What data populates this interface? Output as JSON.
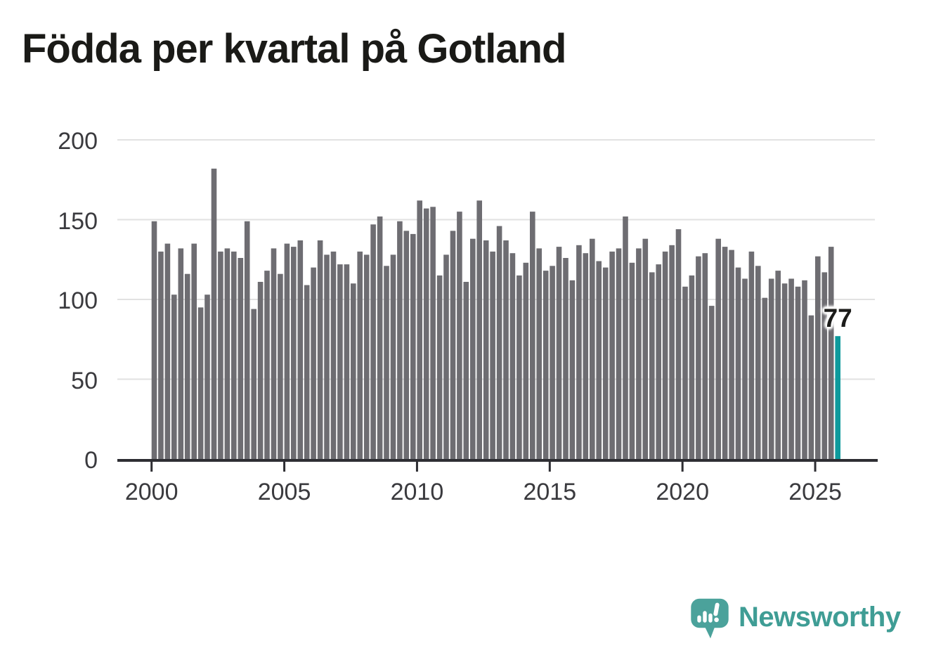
{
  "title": "Födda per kvartal på Gotland",
  "colors": {
    "bar": "#6e6d72",
    "highlight": "#0d9a9c",
    "grid": "#e2e2e2",
    "axis": "#2e2e33",
    "tick_label": "#3a3a3e",
    "title": "#1a1a17",
    "logo": "#4ba29b",
    "logo_text": "#3f9d95"
  },
  "chart_data": {
    "type": "bar",
    "title": "Födda per kvartal på Gotland",
    "x_interval": "quarter",
    "x_start": "2000 Q1",
    "x_end": "2025 Q4",
    "x_tick_labels": [
      "2000",
      "2005",
      "2010",
      "2015",
      "2020",
      "2025"
    ],
    "y_ticks": [
      0,
      50,
      100,
      150,
      200
    ],
    "ylim": [
      0,
      200
    ],
    "grid": "horizontal",
    "values": [
      149,
      130,
      135,
      103,
      132,
      116,
      135,
      95,
      103,
      182,
      130,
      132,
      130,
      126,
      149,
      94,
      111,
      118,
      132,
      116,
      135,
      133,
      137,
      109,
      120,
      137,
      128,
      130,
      122,
      122,
      110,
      130,
      128,
      147,
      152,
      121,
      128,
      149,
      143,
      141,
      162,
      157,
      158,
      115,
      128,
      143,
      155,
      111,
      138,
      162,
      137,
      130,
      146,
      137,
      129,
      115,
      123,
      155,
      132,
      118,
      121,
      133,
      126,
      112,
      134,
      129,
      138,
      124,
      120,
      130,
      132,
      152,
      123,
      132,
      138,
      117,
      122,
      130,
      134,
      144,
      108,
      115,
      127,
      129,
      96,
      138,
      133,
      131,
      120,
      113,
      130,
      121,
      101,
      113,
      118,
      110,
      113,
      108,
      112,
      90,
      127,
      117,
      133,
      77
    ],
    "highlight_last": true,
    "last_value_label": "77"
  },
  "logo": {
    "text": "Newsworthy"
  }
}
